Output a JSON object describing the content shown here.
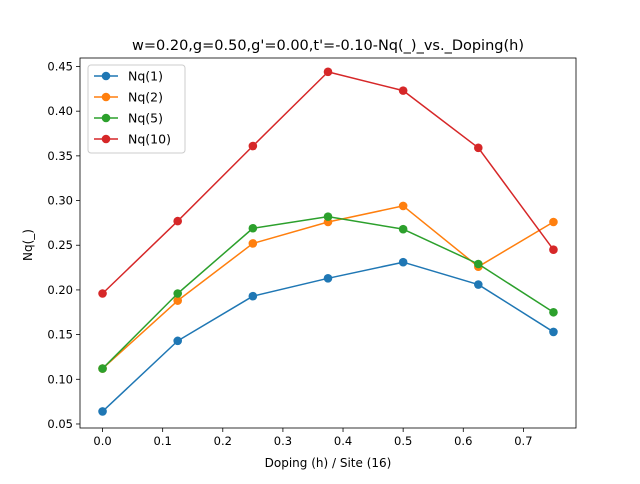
{
  "chart_data": {
    "type": "line",
    "title": "w=0.20,g=0.50,g'=0.00,t'=-0.10-Nq(_)_vs._Doping(h)",
    "xlabel": "Doping (h) / Site (16)",
    "ylabel": "Nq(_)",
    "xlim": [
      -0.0375,
      0.7875
    ],
    "ylim": [
      0.0455,
      0.4595
    ],
    "xticks": [
      0.0,
      0.1,
      0.2,
      0.3,
      0.4,
      0.5,
      0.6,
      0.7
    ],
    "xtick_labels": [
      "0.0",
      "0.1",
      "0.2",
      "0.3",
      "0.4",
      "0.5",
      "0.6",
      "0.7"
    ],
    "yticks": [
      0.05,
      0.1,
      0.15,
      0.2,
      0.25,
      0.3,
      0.35,
      0.4,
      0.45
    ],
    "ytick_labels": [
      "0.05",
      "0.10",
      "0.15",
      "0.20",
      "0.25",
      "0.30",
      "0.35",
      "0.40",
      "0.45"
    ],
    "grid": false,
    "legend_position": "top-left",
    "x": [
      0.0,
      0.125,
      0.25,
      0.375,
      0.5,
      0.625,
      0.75
    ],
    "series": [
      {
        "name": "Nq(1)",
        "color": "#1f77b4",
        "values": [
          0.064,
          0.143,
          0.193,
          0.213,
          0.231,
          0.206,
          0.153
        ]
      },
      {
        "name": "Nq(2)",
        "color": "#ff7f0e",
        "values": [
          0.112,
          0.188,
          0.252,
          0.276,
          0.294,
          0.226,
          0.276
        ]
      },
      {
        "name": "Nq(5)",
        "color": "#2ca02c",
        "values": [
          0.112,
          0.196,
          0.269,
          0.282,
          0.268,
          0.229,
          0.175
        ]
      },
      {
        "name": "Nq(10)",
        "color": "#d62728",
        "values": [
          0.196,
          0.277,
          0.361,
          0.444,
          0.423,
          0.359,
          0.245
        ]
      }
    ]
  }
}
